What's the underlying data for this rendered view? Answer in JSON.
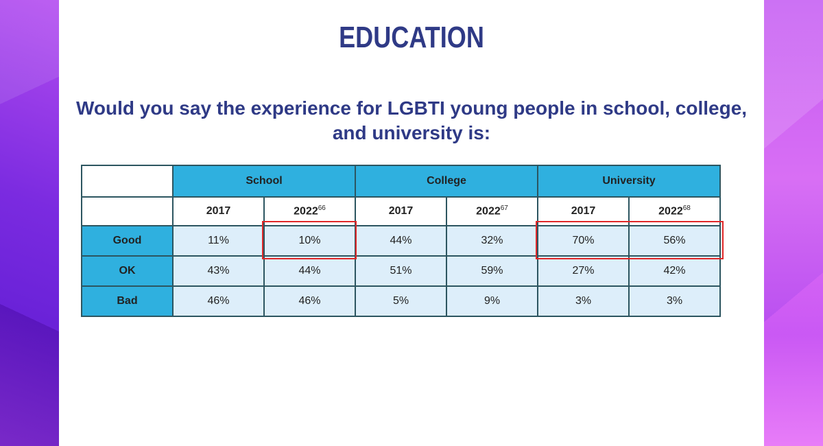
{
  "title": "EDUCATION",
  "question": "Would you say the experience for LGBTI young people in school, college, and university is:",
  "table": {
    "groups": [
      "School",
      "College",
      "University"
    ],
    "years": [
      {
        "year": "2017",
        "sup": ""
      },
      {
        "year": "2022",
        "sup": "66"
      },
      {
        "year": "2017",
        "sup": ""
      },
      {
        "year": "2022",
        "sup": "67"
      },
      {
        "year": "2017",
        "sup": ""
      },
      {
        "year": "2022",
        "sup": "68"
      }
    ],
    "rows": [
      {
        "label": "Good",
        "values": [
          "11%",
          "10%",
          "44%",
          "32%",
          "70%",
          "56%"
        ]
      },
      {
        "label": "OK",
        "values": [
          "43%",
          "44%",
          "51%",
          "59%",
          "27%",
          "42%"
        ]
      },
      {
        "label": "Bad",
        "values": [
          "46%",
          "46%",
          "5%",
          "9%",
          "3%",
          "3%"
        ]
      }
    ]
  },
  "colors": {
    "header_blue": "#2fb0df",
    "cell_light": "#ddeefa",
    "title_navy": "#2f3a86",
    "highlight_red": "#e02828"
  }
}
